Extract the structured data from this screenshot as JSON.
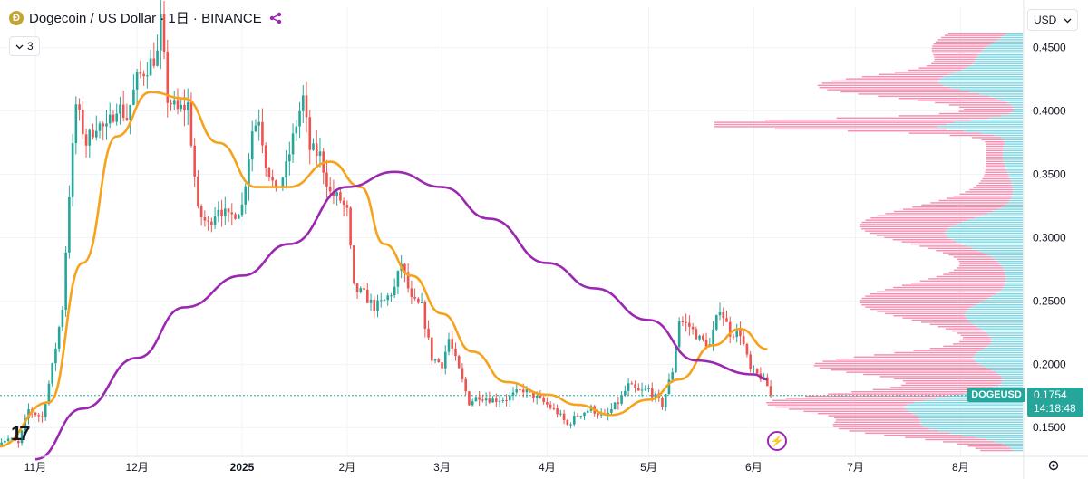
{
  "header": {
    "title": "Dogecoin / US Dollar · 1日 · BINANCE",
    "coin_glyph": "Ð",
    "indicators_count": "3"
  },
  "currency_selector": {
    "label": "USD"
  },
  "price_tag": {
    "symbol": "DOGEUSD",
    "price": "0.1754",
    "countdown": "14:18:48"
  },
  "colors": {
    "up": "#26a69a",
    "down": "#ef5350",
    "ma_short": "#f7a21b",
    "ma_long": "#9c27b0",
    "vp_up": "#7fd6e0",
    "vp_down": "#f48fb1",
    "last_price_line": "#26a69a"
  },
  "icons": [
    "dogecoin-icon",
    "share-icon",
    "chevron-down-icon",
    "chevron-down-icon",
    "tradingview-logo-icon",
    "flash-icon",
    "settings-icon"
  ],
  "chart_data": {
    "type": "candlestick",
    "title": "Dogecoin / US Dollar · 1日 · BINANCE",
    "x_axis": {
      "labels": [
        "11月",
        "12月",
        "2025",
        "2月",
        "3月",
        "4月",
        "5月",
        "6月",
        "7月",
        "8月"
      ],
      "dates": [
        "2024-11-01",
        "2024-12-01",
        "2025-01-01",
        "2025-02-01",
        "2025-03-01",
        "2025-04-01",
        "2025-05-01",
        "2025-06-01",
        "2025-07-01",
        "2025-08-01"
      ]
    },
    "y_axis": {
      "ticks": [
        0.15,
        0.2,
        0.25,
        0.3,
        0.35,
        0.4,
        0.45
      ],
      "tick_labels": [
        "0.1500",
        "0.2000",
        "0.2500",
        "0.3000",
        "0.3500",
        "0.4000",
        "0.4500"
      ],
      "range": [
        0.128,
        0.482
      ]
    },
    "grid": true,
    "last_price": 0.1754,
    "price_path": [
      [
        "2024-10-21",
        0.139
      ],
      [
        "2024-10-24",
        0.141
      ],
      [
        "2024-10-27",
        0.137
      ],
      [
        "2024-10-30",
        0.164
      ],
      [
        "2024-11-03",
        0.158
      ],
      [
        "2024-11-06",
        0.198
      ],
      [
        "2024-11-09",
        0.245
      ],
      [
        "2024-11-11",
        0.335
      ],
      [
        "2024-11-13",
        0.405
      ],
      [
        "2024-11-16",
        0.375
      ],
      [
        "2024-11-19",
        0.39
      ],
      [
        "2024-11-22",
        0.385
      ],
      [
        "2024-11-25",
        0.405
      ],
      [
        "2024-11-28",
        0.395
      ],
      [
        "2024-12-01",
        0.425
      ],
      [
        "2024-12-04",
        0.435
      ],
      [
        "2024-12-07",
        0.445
      ],
      [
        "2024-12-08",
        0.47
      ],
      [
        "2024-12-10",
        0.41
      ],
      [
        "2024-12-13",
        0.4
      ],
      [
        "2024-12-16",
        0.405
      ],
      [
        "2024-12-19",
        0.32
      ],
      [
        "2024-12-22",
        0.31
      ],
      [
        "2024-12-25",
        0.325
      ],
      [
        "2024-12-28",
        0.315
      ],
      [
        "2025-01-01",
        0.325
      ],
      [
        "2025-01-04",
        0.385
      ],
      [
        "2025-01-06",
        0.395
      ],
      [
        "2025-01-08",
        0.36
      ],
      [
        "2025-01-11",
        0.335
      ],
      [
        "2025-01-14",
        0.355
      ],
      [
        "2025-01-17",
        0.39
      ],
      [
        "2025-01-19",
        0.41
      ],
      [
        "2025-01-21",
        0.37
      ],
      [
        "2025-01-24",
        0.365
      ],
      [
        "2025-01-27",
        0.335
      ],
      [
        "2025-01-30",
        0.33
      ],
      [
        "2025-02-01",
        0.32
      ],
      [
        "2025-02-03",
        0.26
      ],
      [
        "2025-02-06",
        0.255
      ],
      [
        "2025-02-09",
        0.245
      ],
      [
        "2025-02-12",
        0.25
      ],
      [
        "2025-02-15",
        0.26
      ],
      [
        "2025-02-17",
        0.28
      ],
      [
        "2025-02-20",
        0.25
      ],
      [
        "2025-02-23",
        0.245
      ],
      [
        "2025-02-26",
        0.205
      ],
      [
        "2025-03-01",
        0.2
      ],
      [
        "2025-03-03",
        0.22
      ],
      [
        "2025-03-06",
        0.195
      ],
      [
        "2025-03-09",
        0.17
      ],
      [
        "2025-03-12",
        0.175
      ],
      [
        "2025-03-16",
        0.172
      ],
      [
        "2025-03-20",
        0.173
      ],
      [
        "2025-03-25",
        0.18
      ],
      [
        "2025-03-28",
        0.175
      ],
      [
        "2025-04-01",
        0.168
      ],
      [
        "2025-04-04",
        0.162
      ],
      [
        "2025-04-07",
        0.152
      ],
      [
        "2025-04-10",
        0.16
      ],
      [
        "2025-04-14",
        0.165
      ],
      [
        "2025-04-18",
        0.158
      ],
      [
        "2025-04-22",
        0.17
      ],
      [
        "2025-04-25",
        0.183
      ],
      [
        "2025-04-28",
        0.178
      ],
      [
        "2025-05-01",
        0.18
      ],
      [
        "2025-05-05",
        0.168
      ],
      [
        "2025-05-08",
        0.195
      ],
      [
        "2025-05-10",
        0.235
      ],
      [
        "2025-05-13",
        0.23
      ],
      [
        "2025-05-16",
        0.22
      ],
      [
        "2025-05-19",
        0.215
      ],
      [
        "2025-05-22",
        0.245
      ],
      [
        "2025-05-25",
        0.225
      ],
      [
        "2025-05-28",
        0.225
      ],
      [
        "2025-05-31",
        0.195
      ],
      [
        "2025-06-03",
        0.19
      ],
      [
        "2025-06-05",
        0.183
      ],
      [
        "2025-06-06",
        0.1754
      ]
    ],
    "series": [
      {
        "points": [
          [
            "2024-10-21",
            0.135
          ],
          [
            "2024-11-05",
            0.17
          ],
          [
            "2024-11-15",
            0.28
          ],
          [
            "2024-11-25",
            0.38
          ],
          [
            "2024-12-05",
            0.415
          ],
          [
            "2024-12-15",
            0.41
          ],
          [
            "2024-12-25",
            0.375
          ],
          [
            "2025-01-05",
            0.34
          ],
          [
            "2025-01-15",
            0.34
          ],
          [
            "2025-01-27",
            0.36
          ],
          [
            "2025-02-05",
            0.34
          ],
          [
            "2025-02-12",
            0.295
          ],
          [
            "2025-02-20",
            0.27
          ],
          [
            "2025-03-01",
            0.24
          ],
          [
            "2025-03-10",
            0.21
          ],
          [
            "2025-03-20",
            0.186
          ],
          [
            "2025-04-01",
            0.176
          ],
          [
            "2025-04-10",
            0.168
          ],
          [
            "2025-04-20",
            0.16
          ],
          [
            "2025-05-01",
            0.172
          ],
          [
            "2025-05-10",
            0.188
          ],
          [
            "2025-05-20",
            0.215
          ],
          [
            "2025-05-28",
            0.228
          ],
          [
            "2025-06-05",
            0.212
          ]
        ]
      },
      {
        "points": [
          [
            "2024-11-01",
            0.125
          ],
          [
            "2024-11-15",
            0.165
          ],
          [
            "2024-12-01",
            0.205
          ],
          [
            "2024-12-15",
            0.245
          ],
          [
            "2025-01-01",
            0.27
          ],
          [
            "2025-01-15",
            0.295
          ],
          [
            "2025-02-01",
            0.34
          ],
          [
            "2025-02-15",
            0.352
          ],
          [
            "2025-03-01",
            0.34
          ],
          [
            "2025-03-15",
            0.315
          ],
          [
            "2025-04-01",
            0.28
          ],
          [
            "2025-04-15",
            0.26
          ],
          [
            "2025-05-01",
            0.235
          ],
          [
            "2025-05-15",
            0.203
          ],
          [
            "2025-06-01",
            0.192
          ],
          [
            "2025-06-05",
            0.188
          ]
        ]
      }
    ]
  }
}
